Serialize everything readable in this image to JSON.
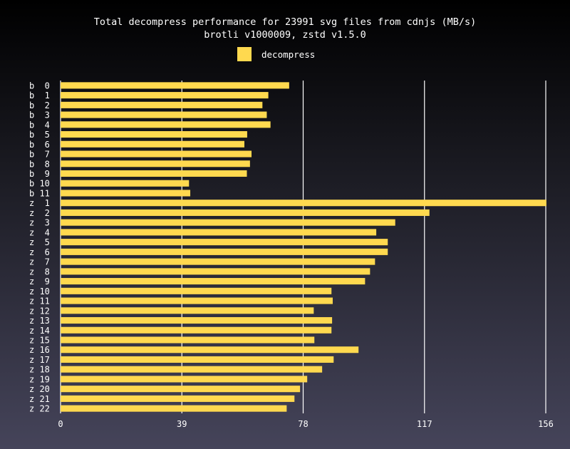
{
  "chart_data": {
    "type": "bar",
    "orientation": "horizontal",
    "title": "Total decompress performance for 23991 svg files from cdnjs (MB/s)",
    "subtitle": "brotli v1000009, zstd v1.5.0",
    "legend_position": "top-center",
    "series": [
      {
        "name": "decompress",
        "color": "#ffd94f",
        "values": [
          73.5,
          66.8,
          64.9,
          66.3,
          67.5,
          60.0,
          59.1,
          61.4,
          60.9,
          59.9,
          41.3,
          41.7,
          156.2,
          118.6,
          107.6,
          101.5,
          105.2,
          105.2,
          101.1,
          99.5,
          97.9,
          87.1,
          87.5,
          81.4,
          87.3,
          87.1,
          81.6,
          95.8,
          87.8,
          84.1,
          79.3,
          77.0,
          75.2,
          72.7
        ]
      }
    ],
    "categories": [
      "b  0",
      "b  1",
      "b  2",
      "b  3",
      "b  4",
      "b  5",
      "b  6",
      "b  7",
      "b  8",
      "b  9",
      "b 10",
      "b 11",
      "z  1",
      "z  2",
      "z  3",
      "z  4",
      "z  5",
      "z  6",
      "z  7",
      "z  8",
      "z  9",
      "z 10",
      "z 11",
      "z 12",
      "z 13",
      "z 14",
      "z 15",
      "z 16",
      "z 17",
      "z 18",
      "z 19",
      "z 20",
      "z 21",
      "z 22"
    ],
    "xlim": [
      0,
      156
    ],
    "xticks": [
      "0",
      "39",
      "78",
      "117",
      "156"
    ],
    "grid": true
  }
}
